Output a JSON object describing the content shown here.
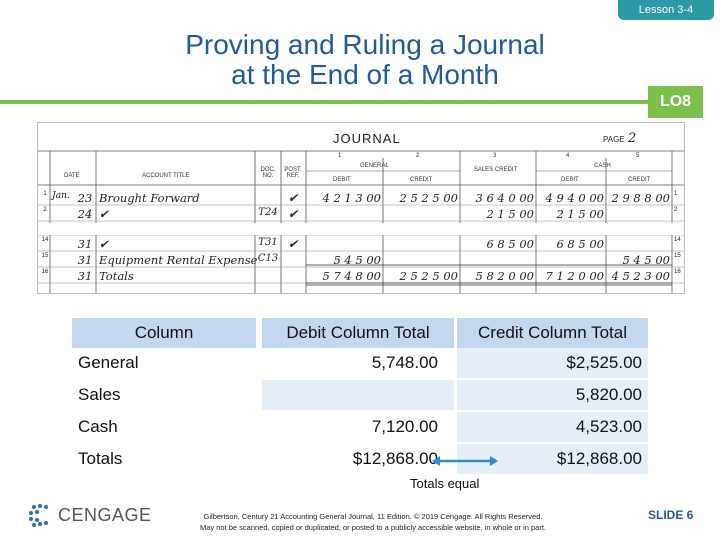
{
  "lesson": "Lesson 3-4",
  "title_line1": "Proving and Ruling a Journal",
  "title_line2": "at the End of a Month",
  "lo": "LO8",
  "journal": {
    "heading": "JOURNAL",
    "page_label": "PAGE",
    "page_number": "2",
    "column_numbers": [
      "1",
      "2",
      "3",
      "4",
      "5"
    ],
    "headers": {
      "date": "DATE",
      "account_title": "ACCOUNT TITLE",
      "doc_no": "DOC. NO.",
      "post_ref": "POST. REF.",
      "general": "GENERAL",
      "debit": "DEBIT",
      "credit": "CREDIT",
      "sales_credit": "SALES CREDIT",
      "cash": "CASH",
      "cash_debit": "DEBIT",
      "cash_credit": "CREDIT"
    },
    "rows": [
      {
        "line": "1",
        "month": "Jan.",
        "day": "23",
        "title": "Brought Forward",
        "doc": "",
        "check": "✔",
        "gen_debit": "4 2 1 3 00",
        "gen_credit": "2 5 2 5 00",
        "sales": "3 6 4 0 00",
        "cash_debit": "4 9 4 0 00",
        "cash_credit": "2 9 8 8 00"
      },
      {
        "line": "2",
        "month": "",
        "day": "24",
        "title": "✔",
        "doc": "T24",
        "check": "✔",
        "gen_debit": "",
        "gen_credit": "",
        "sales": "2 1 5 00",
        "cash_debit": "2 1 5 00",
        "cash_credit": ""
      },
      {
        "line": "14",
        "month": "",
        "day": "31",
        "title": "✔",
        "doc": "T31",
        "check": "✔",
        "gen_debit": "",
        "gen_credit": "",
        "sales": "6 8 5 00",
        "cash_debit": "6 8 5 00",
        "cash_credit": ""
      },
      {
        "line": "15",
        "month": "",
        "day": "31",
        "title": "Equipment Rental Expense",
        "doc": "C13",
        "check": "",
        "gen_debit": "5 4 5 00",
        "gen_credit": "",
        "sales": "",
        "cash_debit": "",
        "cash_credit": "5 4 5 00"
      },
      {
        "line": "16",
        "month": "",
        "day": "31",
        "title": "Totals",
        "doc": "",
        "check": "",
        "gen_debit": "5 7 4 8 00",
        "gen_credit": "2 5 2 5 00",
        "sales": "5 8 2 0 00",
        "cash_debit": "7 1 2 0 00",
        "cash_credit": "4 5 2 3 00"
      }
    ]
  },
  "summary": {
    "headers": [
      "Column",
      "Debit Column Total",
      "Credit Column Total"
    ],
    "rows": [
      {
        "label": "General",
        "debit": "5,748.00",
        "credit": "$2,525.00"
      },
      {
        "label": "Sales",
        "debit": "",
        "credit": "5,820.00"
      },
      {
        "label": "Cash",
        "debit": "7,120.00",
        "credit": "4,523.00"
      },
      {
        "label": "Totals",
        "debit": "$12,868.00",
        "credit": "$12,868.00"
      }
    ]
  },
  "totals_equal": "Totals equal",
  "brand": "CENGAGE",
  "citation_line1": "Gilbertson, Century 21 Accounting General Journal, 11 Edition. © 2019 Cengage. All Rights Reserved.",
  "citation_line2": "May not be scanned, copied or duplicated, or posted to a publicly accessible website, in whole or in part.",
  "slide": "SLIDE 6",
  "colors": {
    "title": "#1f5a9e",
    "accent_green": "#7cc04b",
    "tab_teal": "#2b9aa6",
    "table_header": "#c3d7ef",
    "arrow": "#2a8fd6"
  }
}
